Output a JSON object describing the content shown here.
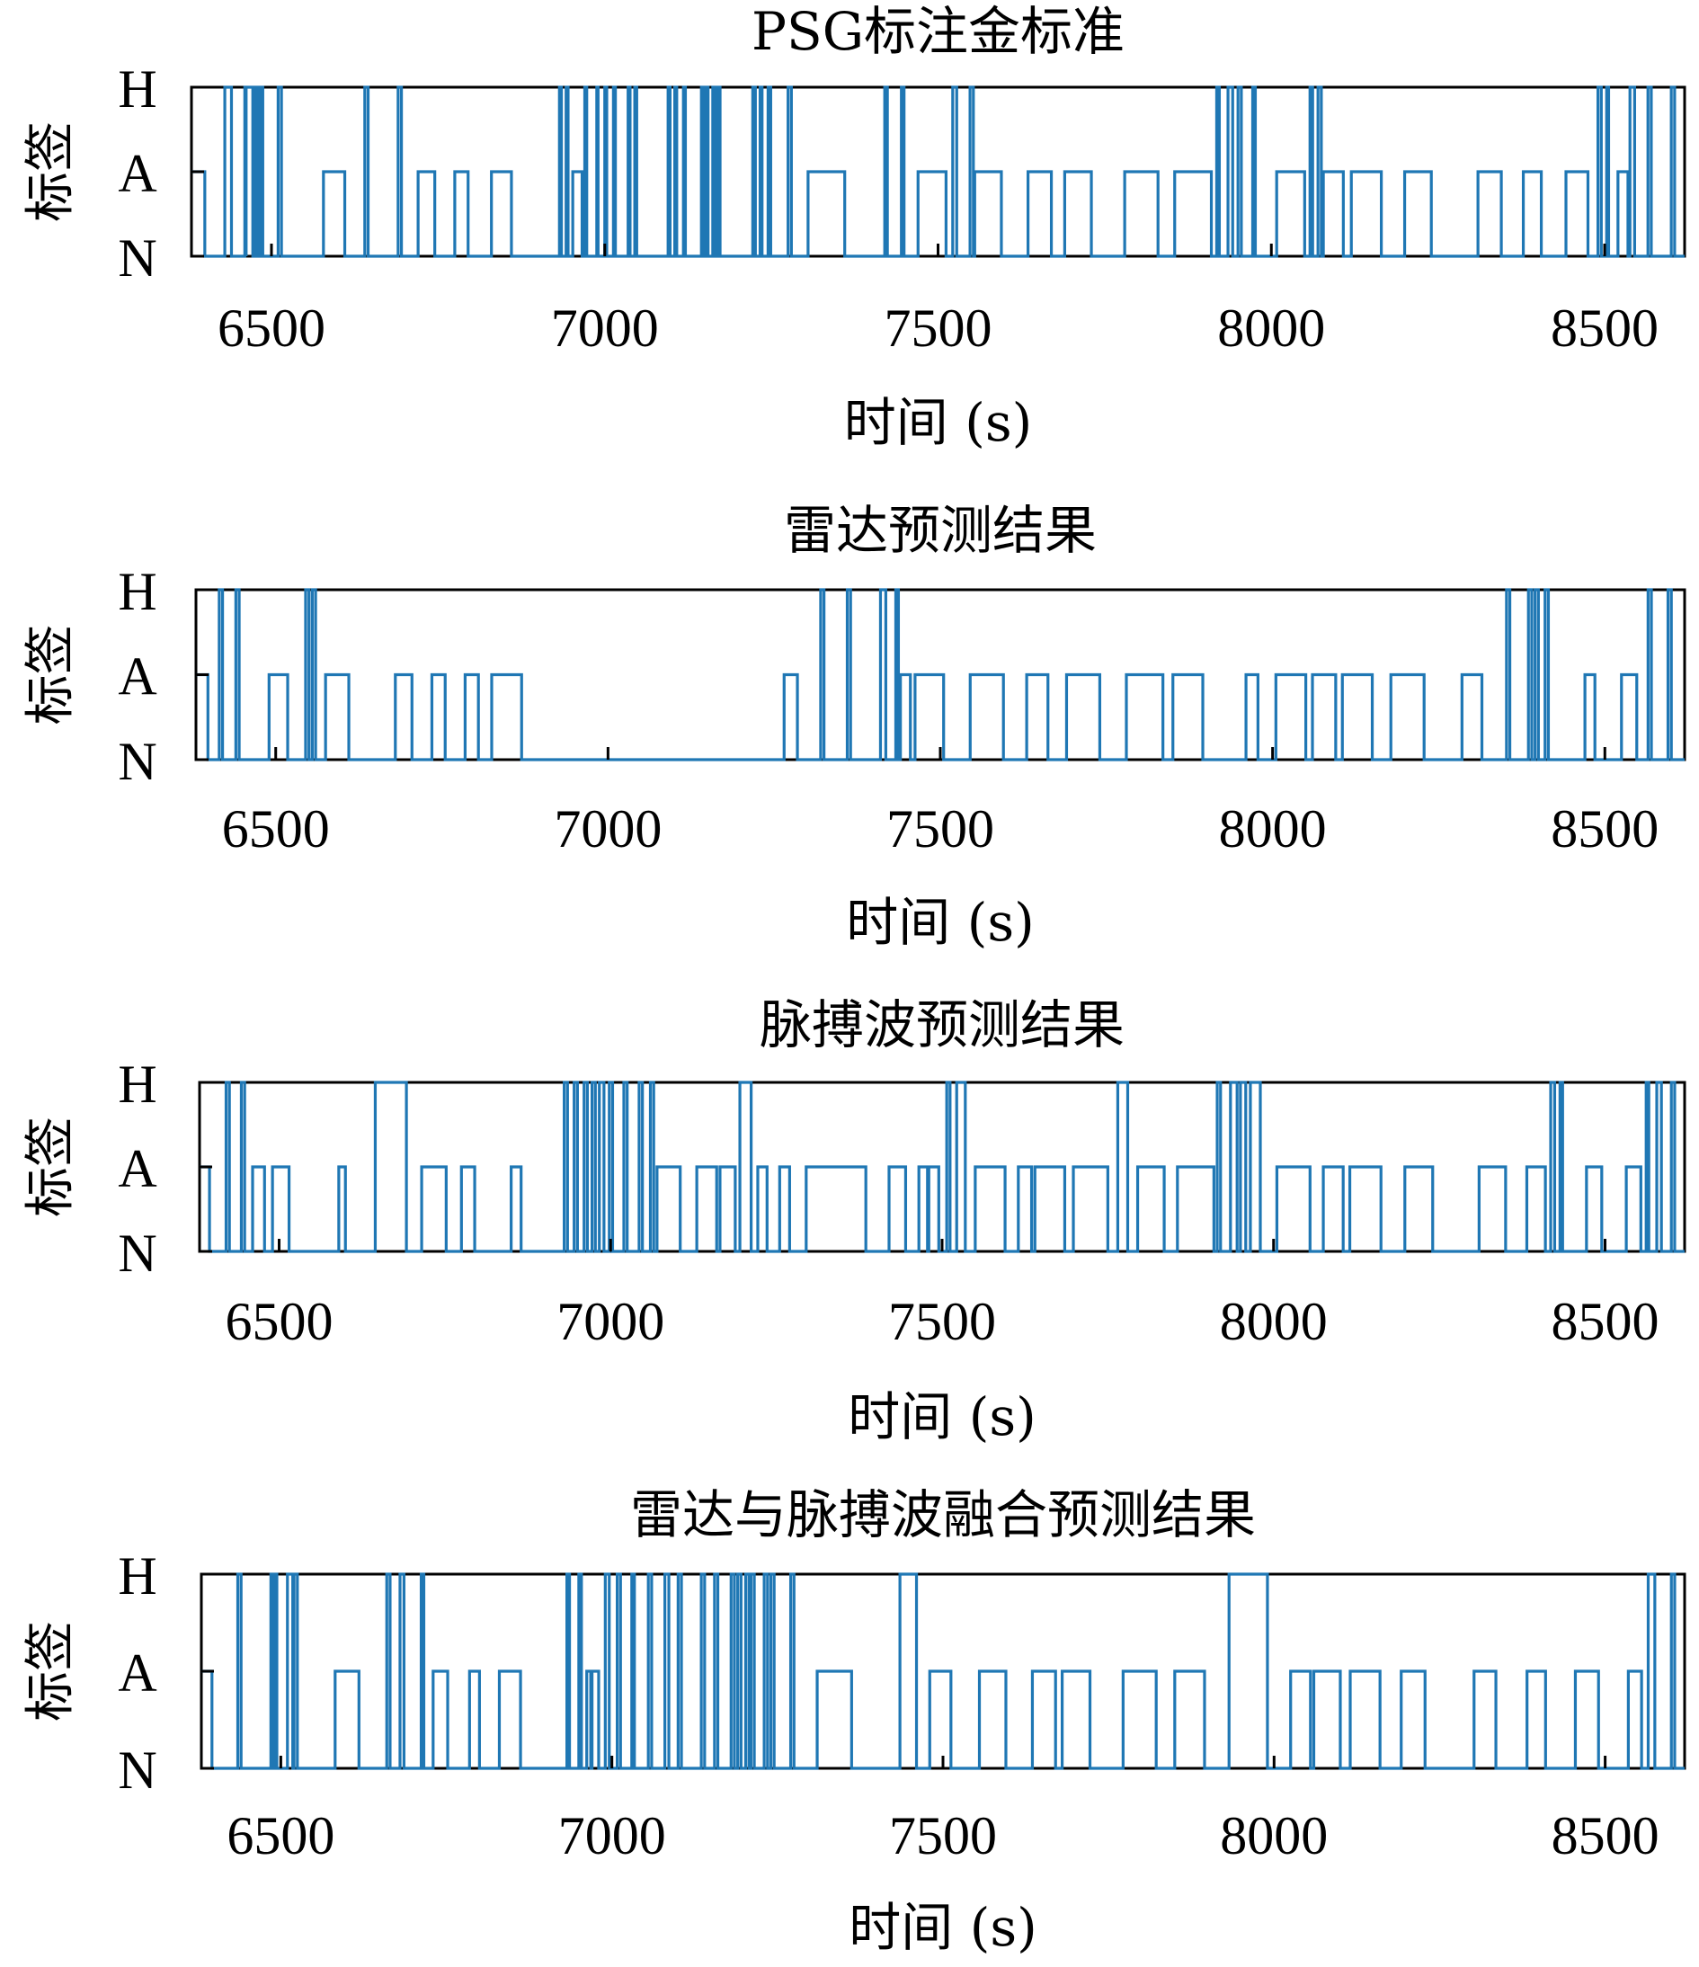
{
  "chart_data": [
    {
      "type": "line",
      "title": "PSG标注金标准",
      "xlabel": "时间 (s)",
      "ylabel": "标签",
      "xlim": [
        6380,
        8620
      ],
      "x_ticks": [
        6500,
        7000,
        7500,
        8000,
        8500
      ],
      "x_tick_labels": [
        "6500",
        "7000",
        "7500",
        "8000",
        "8500"
      ],
      "y_categories": [
        "N",
        "A",
        "H"
      ],
      "line_color": "#1f77b4",
      "x_start": 6380,
      "start_level": "A",
      "segments": [
        {
          "s": 6385,
          "e": 6400,
          "l": "A"
        },
        {
          "s": 6430,
          "e": 6440,
          "l": "H"
        },
        {
          "s": 6460,
          "e": 6462,
          "l": "H"
        },
        {
          "s": 6462,
          "e": 6472,
          "l": "H"
        },
        {
          "s": 6476,
          "e": 6480,
          "l": "H"
        },
        {
          "s": 6483,
          "e": 6487,
          "l": "H"
        },
        {
          "s": 6510,
          "e": 6515,
          "l": "H"
        },
        {
          "s": 6578,
          "e": 6610,
          "l": "A"
        },
        {
          "s": 6640,
          "e": 6645,
          "l": "H"
        },
        {
          "s": 6690,
          "e": 6695,
          "l": "H"
        },
        {
          "s": 6720,
          "e": 6745,
          "l": "A"
        },
        {
          "s": 6775,
          "e": 6795,
          "l": "A"
        },
        {
          "s": 6830,
          "e": 6860,
          "l": "A"
        },
        {
          "s": 6932,
          "e": 6935,
          "l": "H"
        },
        {
          "s": 6942,
          "e": 6945,
          "l": "H"
        },
        {
          "s": 6952,
          "e": 6966,
          "l": "A"
        },
        {
          "s": 6970,
          "e": 6973,
          "l": "H"
        },
        {
          "s": 6988,
          "e": 6990,
          "l": "H"
        },
        {
          "s": 7000,
          "e": 7003,
          "l": "H"
        },
        {
          "s": 7013,
          "e": 7016,
          "l": "H"
        },
        {
          "s": 7035,
          "e": 7038,
          "l": "H"
        },
        {
          "s": 7045,
          "e": 7048,
          "l": "H"
        },
        {
          "s": 7095,
          "e": 7098,
          "l": "H"
        },
        {
          "s": 7105,
          "e": 7108,
          "l": "H"
        },
        {
          "s": 7118,
          "e": 7121,
          "l": "H"
        },
        {
          "s": 7145,
          "e": 7148,
          "l": "H"
        },
        {
          "s": 7152,
          "e": 7155,
          "l": "H"
        },
        {
          "s": 7162,
          "e": 7166,
          "l": "H"
        },
        {
          "s": 7170,
          "e": 7173,
          "l": "H"
        },
        {
          "s": 7222,
          "e": 7226,
          "l": "H"
        },
        {
          "s": 7233,
          "e": 7236,
          "l": "H"
        },
        {
          "s": 7245,
          "e": 7249,
          "l": "H"
        },
        {
          "s": 7275,
          "e": 7280,
          "l": "H"
        },
        {
          "s": 7305,
          "e": 7360,
          "l": "A"
        },
        {
          "s": 7420,
          "e": 7424,
          "l": "H"
        },
        {
          "s": 7445,
          "e": 7449,
          "l": "H"
        },
        {
          "s": 7470,
          "e": 7512,
          "l": "A"
        },
        {
          "s": 7522,
          "e": 7528,
          "l": "H"
        },
        {
          "s": 7548,
          "e": 7553,
          "l": "H"
        },
        {
          "s": 7555,
          "e": 7595,
          "l": "A"
        },
        {
          "s": 7635,
          "e": 7670,
          "l": "A"
        },
        {
          "s": 7690,
          "e": 7730,
          "l": "A"
        },
        {
          "s": 7780,
          "e": 7830,
          "l": "A"
        },
        {
          "s": 7855,
          "e": 7910,
          "l": "A"
        },
        {
          "s": 7918,
          "e": 7922,
          "l": "H"
        },
        {
          "s": 7935,
          "e": 7942,
          "l": "H"
        },
        {
          "s": 7950,
          "e": 7955,
          "l": "H"
        },
        {
          "s": 7972,
          "e": 7976,
          "l": "H"
        },
        {
          "s": 8008,
          "e": 8050,
          "l": "A"
        },
        {
          "s": 8058,
          "e": 8062,
          "l": "H"
        },
        {
          "s": 8070,
          "e": 8075,
          "l": "H"
        },
        {
          "s": 8078,
          "e": 8108,
          "l": "A"
        },
        {
          "s": 8120,
          "e": 8165,
          "l": "A"
        },
        {
          "s": 8200,
          "e": 8240,
          "l": "A"
        },
        {
          "s": 8310,
          "e": 8345,
          "l": "A"
        },
        {
          "s": 8378,
          "e": 8405,
          "l": "A"
        },
        {
          "s": 8442,
          "e": 8475,
          "l": "A"
        },
        {
          "s": 8490,
          "e": 8495,
          "l": "H"
        },
        {
          "s": 8503,
          "e": 8506,
          "l": "H"
        },
        {
          "s": 8520,
          "e": 8535,
          "l": "A"
        },
        {
          "s": 8538,
          "e": 8545,
          "l": "H"
        },
        {
          "s": 8565,
          "e": 8570,
          "l": "H"
        },
        {
          "s": 8600,
          "e": 8605,
          "l": "H"
        }
      ]
    },
    {
      "type": "line",
      "title": "雷达预测结果",
      "xlabel": "时间 (s)",
      "ylabel": "标签",
      "xlim": [
        6380,
        8620
      ],
      "x_ticks": [
        6500,
        7000,
        7500,
        8000,
        8500
      ],
      "x_tick_labels": [
        "6500",
        "7000",
        "7500",
        "8000",
        "8500"
      ],
      "y_categories": [
        "N",
        "A",
        "H"
      ],
      "line_color": "#1f77b4",
      "x_start": 6380,
      "start_level": "A",
      "segments": [
        {
          "s": 6390,
          "e": 6398,
          "l": "A"
        },
        {
          "s": 6415,
          "e": 6420,
          "l": "H"
        },
        {
          "s": 6440,
          "e": 6445,
          "l": "H"
        },
        {
          "s": 6490,
          "e": 6518,
          "l": "A"
        },
        {
          "s": 6545,
          "e": 6550,
          "l": "H"
        },
        {
          "s": 6555,
          "e": 6560,
          "l": "H"
        },
        {
          "s": 6575,
          "e": 6610,
          "l": "A"
        },
        {
          "s": 6680,
          "e": 6705,
          "l": "A"
        },
        {
          "s": 6735,
          "e": 6755,
          "l": "A"
        },
        {
          "s": 6785,
          "e": 6805,
          "l": "A"
        },
        {
          "s": 6825,
          "e": 6870,
          "l": "A"
        },
        {
          "s": 7265,
          "e": 7285,
          "l": "A"
        },
        {
          "s": 7320,
          "e": 7325,
          "l": "H"
        },
        {
          "s": 7360,
          "e": 7365,
          "l": "H"
        },
        {
          "s": 7410,
          "e": 7418,
          "l": "H"
        },
        {
          "s": 7433,
          "e": 7437,
          "l": "H"
        },
        {
          "s": 7440,
          "e": 7455,
          "l": "A"
        },
        {
          "s": 7462,
          "e": 7505,
          "l": "A"
        },
        {
          "s": 7545,
          "e": 7595,
          "l": "A"
        },
        {
          "s": 7630,
          "e": 7662,
          "l": "A"
        },
        {
          "s": 7690,
          "e": 7740,
          "l": "A"
        },
        {
          "s": 7780,
          "e": 7835,
          "l": "A"
        },
        {
          "s": 7850,
          "e": 7895,
          "l": "A"
        },
        {
          "s": 7960,
          "e": 7978,
          "l": "A"
        },
        {
          "s": 8005,
          "e": 8050,
          "l": "A"
        },
        {
          "s": 8060,
          "e": 8095,
          "l": "A"
        },
        {
          "s": 8105,
          "e": 8150,
          "l": "A"
        },
        {
          "s": 8178,
          "e": 8228,
          "l": "A"
        },
        {
          "s": 8285,
          "e": 8315,
          "l": "A"
        },
        {
          "s": 8352,
          "e": 8357,
          "l": "H"
        },
        {
          "s": 8385,
          "e": 8390,
          "l": "H"
        },
        {
          "s": 8395,
          "e": 8400,
          "l": "H"
        },
        {
          "s": 8410,
          "e": 8415,
          "l": "H"
        },
        {
          "s": 8470,
          "e": 8485,
          "l": "A"
        },
        {
          "s": 8525,
          "e": 8548,
          "l": "A"
        },
        {
          "s": 8565,
          "e": 8570,
          "l": "H"
        },
        {
          "s": 8595,
          "e": 8600,
          "l": "H"
        }
      ]
    },
    {
      "type": "line",
      "title": "脉搏波预测结果",
      "xlabel": "时间 (s)",
      "ylabel": "标签",
      "xlim": [
        6380,
        8620
      ],
      "x_ticks": [
        6500,
        7000,
        7500,
        8000,
        8500
      ],
      "x_tick_labels": [
        "6500",
        "7000",
        "7500",
        "8000",
        "8500"
      ],
      "y_categories": [
        "N",
        "A",
        "H"
      ],
      "line_color": "#1f77b4",
      "x_start": 6380,
      "start_level": "A",
      "segments": [
        {
          "s": 6390,
          "e": 6395,
          "l": "A"
        },
        {
          "s": 6420,
          "e": 6425,
          "l": "H"
        },
        {
          "s": 6443,
          "e": 6448,
          "l": "H"
        },
        {
          "s": 6460,
          "e": 6478,
          "l": "A"
        },
        {
          "s": 6490,
          "e": 6515,
          "l": "A"
        },
        {
          "s": 6590,
          "e": 6600,
          "l": "A"
        },
        {
          "s": 6645,
          "e": 6692,
          "l": "H"
        },
        {
          "s": 6715,
          "e": 6752,
          "l": "A"
        },
        {
          "s": 6775,
          "e": 6795,
          "l": "A"
        },
        {
          "s": 6850,
          "e": 6865,
          "l": "A"
        },
        {
          "s": 6930,
          "e": 6935,
          "l": "H"
        },
        {
          "s": 6945,
          "e": 6950,
          "l": "H"
        },
        {
          "s": 6960,
          "e": 6965,
          "l": "H"
        },
        {
          "s": 6972,
          "e": 6977,
          "l": "H"
        },
        {
          "s": 6983,
          "e": 6990,
          "l": "H"
        },
        {
          "s": 6998,
          "e": 7003,
          "l": "H"
        },
        {
          "s": 7020,
          "e": 7025,
          "l": "H"
        },
        {
          "s": 7043,
          "e": 7048,
          "l": "H"
        },
        {
          "s": 7060,
          "e": 7065,
          "l": "H"
        },
        {
          "s": 7070,
          "e": 7105,
          "l": "A"
        },
        {
          "s": 7130,
          "e": 7160,
          "l": "A"
        },
        {
          "s": 7165,
          "e": 7188,
          "l": "A"
        },
        {
          "s": 7195,
          "e": 7212,
          "l": "H"
        },
        {
          "s": 7222,
          "e": 7236,
          "l": "A"
        },
        {
          "s": 7255,
          "e": 7270,
          "l": "A"
        },
        {
          "s": 7295,
          "e": 7385,
          "l": "A"
        },
        {
          "s": 7420,
          "e": 7445,
          "l": "A"
        },
        {
          "s": 7465,
          "e": 7478,
          "l": "A"
        },
        {
          "s": 7480,
          "e": 7495,
          "l": "A"
        },
        {
          "s": 7507,
          "e": 7512,
          "l": "H"
        },
        {
          "s": 7522,
          "e": 7535,
          "l": "H"
        },
        {
          "s": 7550,
          "e": 7595,
          "l": "A"
        },
        {
          "s": 7615,
          "e": 7635,
          "l": "A"
        },
        {
          "s": 7640,
          "e": 7685,
          "l": "A"
        },
        {
          "s": 7698,
          "e": 7750,
          "l": "A"
        },
        {
          "s": 7765,
          "e": 7780,
          "l": "H"
        },
        {
          "s": 7795,
          "e": 7835,
          "l": "A"
        },
        {
          "s": 7855,
          "e": 7910,
          "l": "A"
        },
        {
          "s": 7915,
          "e": 7920,
          "l": "H"
        },
        {
          "s": 7935,
          "e": 7945,
          "l": "H"
        },
        {
          "s": 7950,
          "e": 7958,
          "l": "H"
        },
        {
          "s": 7965,
          "e": 7980,
          "l": "H"
        },
        {
          "s": 8005,
          "e": 8055,
          "l": "A"
        },
        {
          "s": 8075,
          "e": 8105,
          "l": "A"
        },
        {
          "s": 8115,
          "e": 8162,
          "l": "A"
        },
        {
          "s": 8198,
          "e": 8240,
          "l": "A"
        },
        {
          "s": 8310,
          "e": 8350,
          "l": "A"
        },
        {
          "s": 8382,
          "e": 8410,
          "l": "A"
        },
        {
          "s": 8418,
          "e": 8424,
          "l": "H"
        },
        {
          "s": 8432,
          "e": 8436,
          "l": "H"
        },
        {
          "s": 8472,
          "e": 8495,
          "l": "A"
        },
        {
          "s": 8532,
          "e": 8554,
          "l": "A"
        },
        {
          "s": 8562,
          "e": 8566,
          "l": "H"
        },
        {
          "s": 8578,
          "e": 8585,
          "l": "H"
        },
        {
          "s": 8600,
          "e": 8605,
          "l": "H"
        }
      ]
    },
    {
      "type": "line",
      "title": "雷达与脉搏波融合预测结果",
      "xlabel": "时间 (s)",
      "ylabel": "标签",
      "xlim": [
        6380,
        8620
      ],
      "x_ticks": [
        6500,
        7000,
        7500,
        8000,
        8500
      ],
      "x_tick_labels": [
        "6500",
        "7000",
        "7500",
        "8000",
        "8500"
      ],
      "y_categories": [
        "N",
        "A",
        "H"
      ],
      "line_color": "#1f77b4",
      "x_start": 6380,
      "start_level": "A",
      "segments": [
        {
          "s": 6390,
          "e": 6396,
          "l": "A"
        },
        {
          "s": 6435,
          "e": 6440,
          "l": "H"
        },
        {
          "s": 6485,
          "e": 6488,
          "l": "H"
        },
        {
          "s": 6490,
          "e": 6494,
          "l": "H"
        },
        {
          "s": 6510,
          "e": 6518,
          "l": "H"
        },
        {
          "s": 6520,
          "e": 6525,
          "l": "H"
        },
        {
          "s": 6582,
          "e": 6618,
          "l": "A"
        },
        {
          "s": 6660,
          "e": 6665,
          "l": "H"
        },
        {
          "s": 6680,
          "e": 6686,
          "l": "H"
        },
        {
          "s": 6712,
          "e": 6716,
          "l": "H"
        },
        {
          "s": 6730,
          "e": 6752,
          "l": "A"
        },
        {
          "s": 6785,
          "e": 6800,
          "l": "A"
        },
        {
          "s": 6830,
          "e": 6862,
          "l": "A"
        },
        {
          "s": 6932,
          "e": 6936,
          "l": "H"
        },
        {
          "s": 6950,
          "e": 6954,
          "l": "H"
        },
        {
          "s": 6962,
          "e": 6968,
          "l": "A"
        },
        {
          "s": 6970,
          "e": 6980,
          "l": "A"
        },
        {
          "s": 6990,
          "e": 6996,
          "l": "H"
        },
        {
          "s": 7008,
          "e": 7013,
          "l": "H"
        },
        {
          "s": 7030,
          "e": 7034,
          "l": "H"
        },
        {
          "s": 7055,
          "e": 7060,
          "l": "H"
        },
        {
          "s": 7080,
          "e": 7086,
          "l": "H"
        },
        {
          "s": 7100,
          "e": 7105,
          "l": "H"
        },
        {
          "s": 7135,
          "e": 7140,
          "l": "H"
        },
        {
          "s": 7155,
          "e": 7160,
          "l": "H"
        },
        {
          "s": 7180,
          "e": 7185,
          "l": "H"
        },
        {
          "s": 7190,
          "e": 7195,
          "l": "H"
        },
        {
          "s": 7202,
          "e": 7207,
          "l": "H"
        },
        {
          "s": 7210,
          "e": 7215,
          "l": "H"
        },
        {
          "s": 7230,
          "e": 7235,
          "l": "H"
        },
        {
          "s": 7240,
          "e": 7245,
          "l": "H"
        },
        {
          "s": 7270,
          "e": 7275,
          "l": "H"
        },
        {
          "s": 7310,
          "e": 7362,
          "l": "A"
        },
        {
          "s": 7435,
          "e": 7460,
          "l": "H"
        },
        {
          "s": 7480,
          "e": 7512,
          "l": "A"
        },
        {
          "s": 7555,
          "e": 7595,
          "l": "A"
        },
        {
          "s": 7635,
          "e": 7670,
          "l": "A"
        },
        {
          "s": 7680,
          "e": 7722,
          "l": "A"
        },
        {
          "s": 7772,
          "e": 7822,
          "l": "A"
        },
        {
          "s": 7850,
          "e": 7895,
          "l": "A"
        },
        {
          "s": 7932,
          "e": 7990,
          "l": "H"
        },
        {
          "s": 8025,
          "e": 8055,
          "l": "A"
        },
        {
          "s": 8060,
          "e": 8100,
          "l": "A"
        },
        {
          "s": 8115,
          "e": 8160,
          "l": "A"
        },
        {
          "s": 8192,
          "e": 8228,
          "l": "A"
        },
        {
          "s": 8302,
          "e": 8335,
          "l": "A"
        },
        {
          "s": 8382,
          "e": 8410,
          "l": "A"
        },
        {
          "s": 8455,
          "e": 8490,
          "l": "A"
        },
        {
          "s": 8535,
          "e": 8555,
          "l": "A"
        },
        {
          "s": 8565,
          "e": 8575,
          "l": "H"
        },
        {
          "s": 8600,
          "e": 8605,
          "l": "H"
        }
      ]
    }
  ]
}
